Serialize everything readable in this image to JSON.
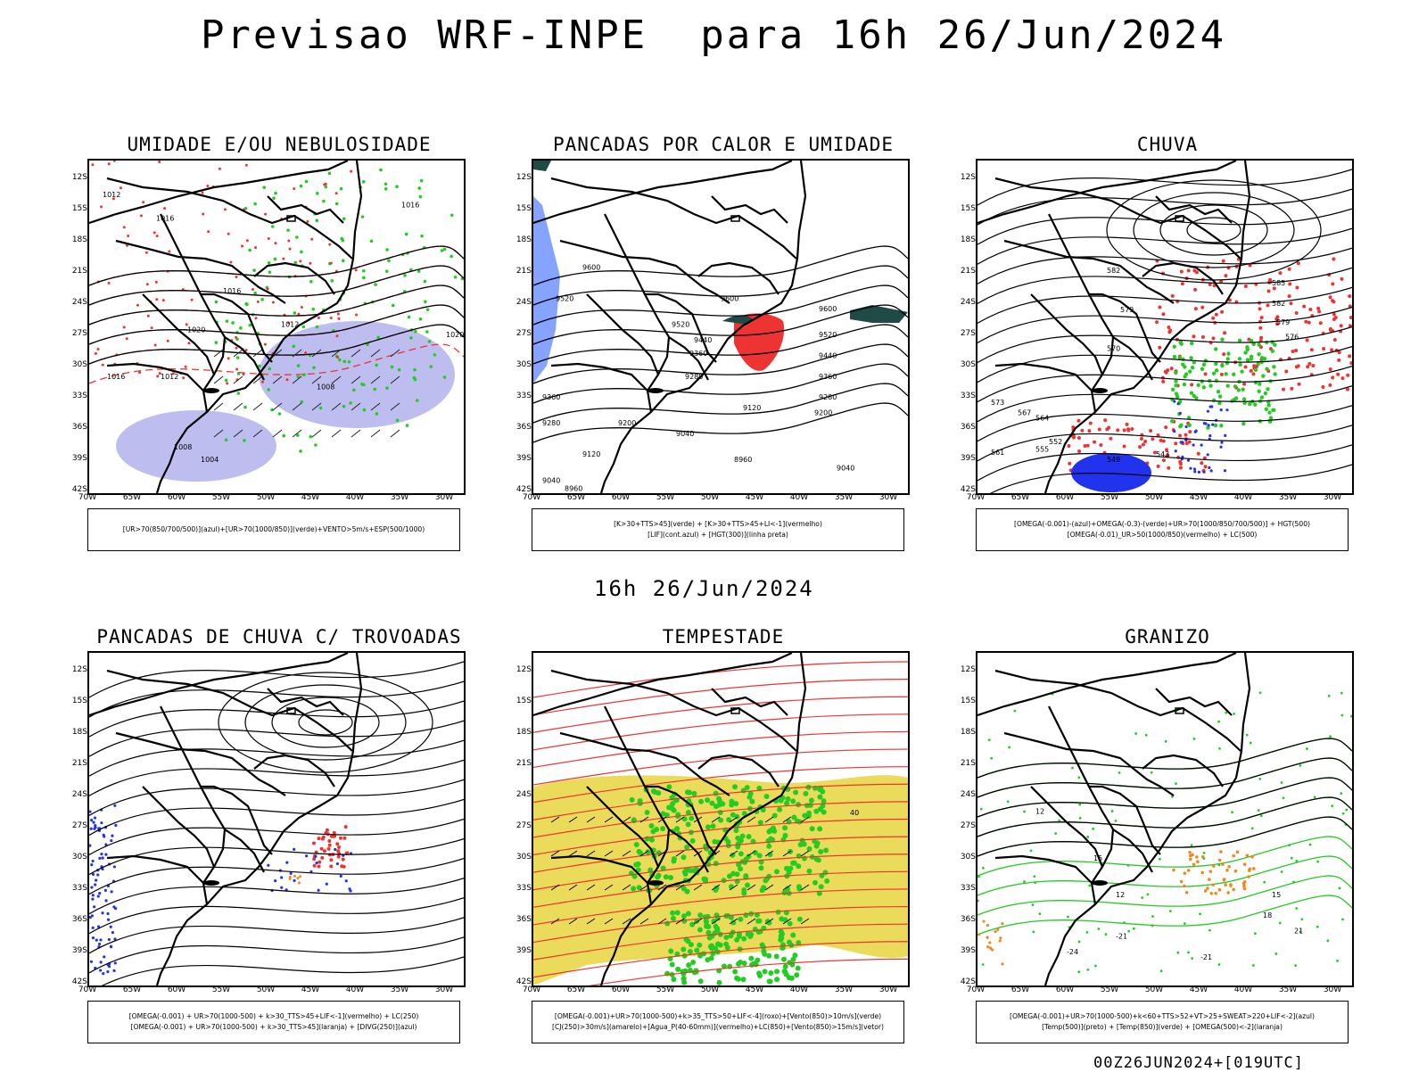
{
  "header": {
    "title": "Previsao WRF-INPE  para 16h 26/Jun/2024",
    "mid_date": "16h 26/Jun/2024",
    "run_label": "00Z26JUN2024+[019UTC]"
  },
  "colors": {
    "green": "#22cc22",
    "blue": "#2233ee",
    "red": "#ee3333",
    "orange": "#ee8822",
    "yellow": "#e8d848",
    "lavender": "#9999e6",
    "dark_teal": "#1f4a46"
  },
  "axes": {
    "y_ticks": [
      "12S",
      "15S",
      "18S",
      "21S",
      "24S",
      "27S",
      "30S",
      "33S",
      "36S",
      "39S",
      "42S"
    ],
    "x_ticks": [
      "70W",
      "65W",
      "60W",
      "55W",
      "50W",
      "45W",
      "40W",
      "35W",
      "30W"
    ]
  },
  "chart_data": [
    {
      "type": "heatmap",
      "title": "UMIDADE E/OU NEBULOSIDADE",
      "legend": [
        "[UR>70(850/700/500)](azul)+[UR>70(1000/850)](verde)+VENTO>5m/s+ESP(500/1000)"
      ],
      "xlim": [
        -70,
        -28
      ],
      "ylim": [
        -42,
        -10
      ],
      "contour_labels": [
        {
          "text": "1012",
          "lon": -68.5,
          "lat": -13.5
        },
        {
          "text": "1016",
          "lon": -62.5,
          "lat": -15.8
        },
        {
          "text": "1012",
          "lon": -62.0,
          "lat": -31.0
        },
        {
          "text": "1020",
          "lon": -59.0,
          "lat": -26.5
        },
        {
          "text": "1016",
          "lon": -55.0,
          "lat": -22.8
        },
        {
          "text": "1012",
          "lon": -48.5,
          "lat": -26.0
        },
        {
          "text": "1008",
          "lon": -60.5,
          "lat": -37.8
        },
        {
          "text": "1004",
          "lon": -57.5,
          "lat": -39.0
        },
        {
          "text": "1008",
          "lon": -44.5,
          "lat": -32.0
        },
        {
          "text": "1016",
          "lon": -35.0,
          "lat": -14.5
        },
        {
          "text": "1020",
          "lon": -30.0,
          "lat": -27.0
        },
        {
          "text": "1016",
          "lon": -68.0,
          "lat": -31.0
        }
      ]
    },
    {
      "type": "heatmap",
      "title": "PANCADAS POR CALOR E UMIDADE",
      "legend": [
        "[K>30+TTS>45](verde) + [K>30+TTS>45+LI<-1](vermelho)",
        "[LIF](cont.azul) + [HGT(300)](linha preta)"
      ],
      "xlim": [
        -70,
        -28
      ],
      "ylim": [
        -42,
        -10
      ],
      "contour_labels": [
        {
          "text": "9600",
          "lon": -64.5,
          "lat": -20.5
        },
        {
          "text": "9520",
          "lon": -67.5,
          "lat": -23.5
        },
        {
          "text": "9600",
          "lon": -49.0,
          "lat": -23.5
        },
        {
          "text": "9600",
          "lon": -38.0,
          "lat": -24.5
        },
        {
          "text": "9520",
          "lon": -54.5,
          "lat": -26.0
        },
        {
          "text": "9440",
          "lon": -52.0,
          "lat": -27.5
        },
        {
          "text": "9360",
          "lon": -52.5,
          "lat": -28.8
        },
        {
          "text": "9280",
          "lon": -53.0,
          "lat": -31.0
        },
        {
          "text": "9520",
          "lon": -38.0,
          "lat": -27.0
        },
        {
          "text": "9440",
          "lon": -38.0,
          "lat": -29.0
        },
        {
          "text": "9360",
          "lon": -38.0,
          "lat": -31.0
        },
        {
          "text": "9280",
          "lon": -38.0,
          "lat": -33.0
        },
        {
          "text": "9200",
          "lon": -38.5,
          "lat": -34.5
        },
        {
          "text": "9120",
          "lon": -46.5,
          "lat": -34.0
        },
        {
          "text": "9200",
          "lon": -60.5,
          "lat": -35.5
        },
        {
          "text": "9280",
          "lon": -69.0,
          "lat": -35.5
        },
        {
          "text": "9360",
          "lon": -69.0,
          "lat": -33.0
        },
        {
          "text": "9040",
          "lon": -54.0,
          "lat": -36.5
        },
        {
          "text": "9120",
          "lon": -64.5,
          "lat": -38.5
        },
        {
          "text": "8960",
          "lon": -47.5,
          "lat": -39.0
        },
        {
          "text": "9040",
          "lon": -36.0,
          "lat": -39.8
        },
        {
          "text": "9040",
          "lon": -69.0,
          "lat": -41.0
        },
        {
          "text": "8960",
          "lon": -66.5,
          "lat": -41.8
        }
      ]
    },
    {
      "type": "heatmap",
      "title": "CHUVA",
      "legend": [
        "[OMEGA(-0.001)-(azul)+OMEGA(-0.3)-(verde)+UR>70(1000/850/700/500)] + HGT(500)",
        "[OMEGA(-0.01)_UR>50(1000/850)(vermelho) + LC(500)"
      ],
      "xlim": [
        -70,
        -28
      ],
      "ylim": [
        -42,
        -10
      ],
      "contour_labels": [
        {
          "text": "585",
          "lon": -37.0,
          "lat": -22.0
        },
        {
          "text": "582",
          "lon": -37.0,
          "lat": -24.0
        },
        {
          "text": "579",
          "lon": -36.5,
          "lat": -25.8
        },
        {
          "text": "576",
          "lon": -35.5,
          "lat": -27.2
        },
        {
          "text": "573",
          "lon": -68.5,
          "lat": -33.5
        },
        {
          "text": "570",
          "lon": -55.5,
          "lat": -28.3
        },
        {
          "text": "567",
          "lon": -65.5,
          "lat": -34.5
        },
        {
          "text": "564",
          "lon": -63.5,
          "lat": -35.0
        },
        {
          "text": "561",
          "lon": -68.5,
          "lat": -38.3
        },
        {
          "text": "555",
          "lon": -63.5,
          "lat": -38.0
        },
        {
          "text": "552",
          "lon": -62.0,
          "lat": -37.3
        },
        {
          "text": "549",
          "lon": -55.5,
          "lat": -39.0
        },
        {
          "text": "543",
          "lon": -50.0,
          "lat": -38.5
        },
        {
          "text": "582",
          "lon": -55.5,
          "lat": -20.8
        },
        {
          "text": "579",
          "lon": -54.0,
          "lat": -24.6
        }
      ]
    },
    {
      "type": "heatmap",
      "title": "PANCADAS DE CHUVA C/ TROVOADAS",
      "legend": [
        "[OMEGA(-0.001) + UR>70(1000-500) + k>30_TTS>45+LIF<-1](vermelho) + LC(250)",
        "[OMEGA(-0.001) + UR>70(1000-500) + k>30_TTS>45](laranja) + [DIVG(250)](azul)"
      ],
      "xlim": [
        -70,
        -28
      ],
      "ylim": [
        -42,
        -10
      ],
      "contour_labels": []
    },
    {
      "type": "heatmap",
      "title": "TEMPESTADE",
      "legend": [
        "[OMEGA(-0.001)+UR>70(1000-500)+k>35_TTS>50+LIF<-4](roxo)+[Vento(850)>10m/s](verde)",
        "[CJ(250)>30m/s](amarelo)+[Agua_P(40-60mm)](vermelho)+LC(850)+[Vento(850)>15m/s](vetor)"
      ],
      "xlim": [
        -70,
        -28
      ],
      "ylim": [
        -42,
        -10
      ],
      "contour_labels": [
        {
          "text": "40",
          "lon": -34.5,
          "lat": -25.6
        }
      ]
    },
    {
      "type": "heatmap",
      "title": "GRANIZO",
      "legend": [
        "[OMEGA(-0.001)+UR>70(1000-500)+k<60+TTS>52+VT>25+SWEAT>220+LIF<-2](azul)",
        "[Temp(500)](preto) + [Temp(850)](verde) + [OMEGA(500)<-2](laranja)"
      ],
      "xlim": [
        -70,
        -28
      ],
      "ylim": [
        -42,
        -10
      ],
      "contour_labels": [
        {
          "text": "12",
          "lon": -63.5,
          "lat": -25.5
        },
        {
          "text": "15",
          "lon": -57.0,
          "lat": -30.0
        },
        {
          "text": "12",
          "lon": -54.5,
          "lat": -33.5
        },
        {
          "text": "15",
          "lon": -37.0,
          "lat": -33.5
        },
        {
          "text": "18",
          "lon": -38.0,
          "lat": -35.5
        },
        {
          "text": "21",
          "lon": -34.5,
          "lat": -37.0
        },
        {
          "text": "-21",
          "lon": -54.5,
          "lat": -37.5
        },
        {
          "text": "-24",
          "lon": -60.0,
          "lat": -39.0
        },
        {
          "text": "-21",
          "lon": -45.0,
          "lat": -39.5
        }
      ]
    }
  ]
}
